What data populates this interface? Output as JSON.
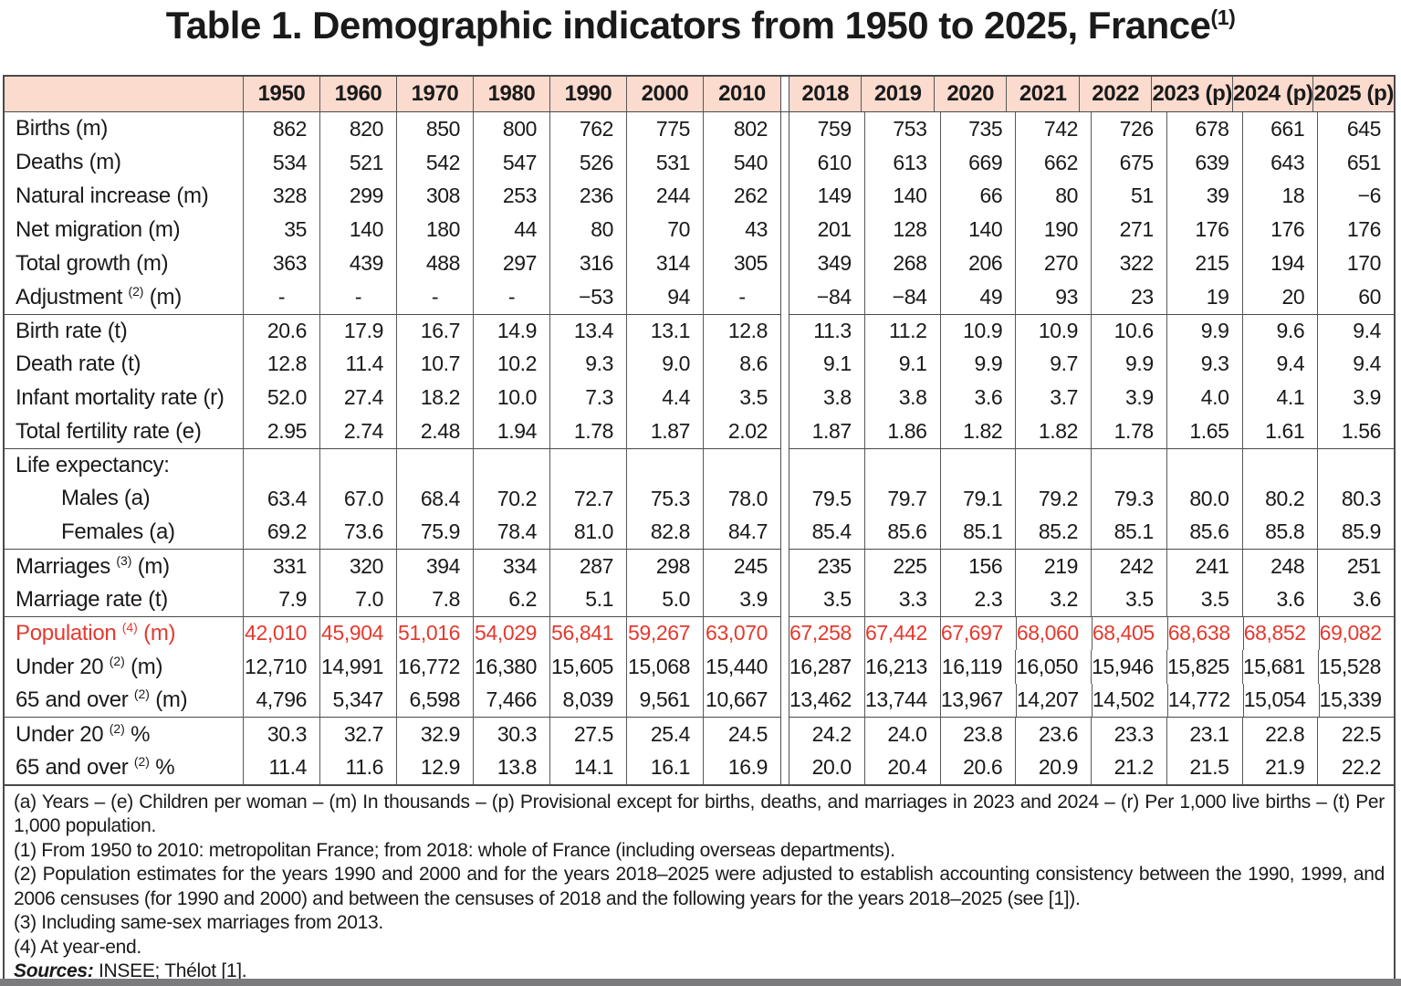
{
  "colors": {
    "accent_red": "#e5392e",
    "header_bg": "#fadbce",
    "border_dark": "#4a4a4c",
    "border_light": "#595959",
    "bottom_strip": "#7b7b7e"
  },
  "title": {
    "text": "Table 1. Demographic indicators from 1950 to 2025, France",
    "sup": "(1)"
  },
  "columns": {
    "left": [
      "1950",
      "1960",
      "1970",
      "1980",
      "1990",
      "2000",
      "2010"
    ],
    "right": [
      "2018",
      "2019",
      "2020",
      "2021",
      "2022",
      "2023 (p)",
      "2024 (p)",
      "2025 (p)"
    ]
  },
  "rows": [
    {
      "pre": "Births",
      "sup": "",
      "post": " (m)",
      "left": [
        "862",
        "820",
        "850",
        "800",
        "762",
        "775",
        "802"
      ],
      "right": [
        "759",
        "753",
        "735",
        "742",
        "726",
        "678",
        "661",
        "645"
      ]
    },
    {
      "pre": "Deaths",
      "sup": "",
      "post": " (m)",
      "left": [
        "534",
        "521",
        "542",
        "547",
        "526",
        "531",
        "540"
      ],
      "right": [
        "610",
        "613",
        "669",
        "662",
        "675",
        "639",
        "643",
        "651"
      ]
    },
    {
      "pre": "Natural increase",
      "sup": "",
      "post": " (m)",
      "left": [
        "328",
        "299",
        "308",
        "253",
        "236",
        "244",
        "262"
      ],
      "right": [
        "149",
        "140",
        "66",
        "80",
        "51",
        "39",
        "18",
        "−6"
      ]
    },
    {
      "pre": "Net migration",
      "sup": "",
      "post": " (m)",
      "left": [
        "35",
        "140",
        "180",
        "44",
        "80",
        "70",
        "43"
      ],
      "right": [
        "201",
        "128",
        "140",
        "190",
        "271",
        "176",
        "176",
        "176"
      ]
    },
    {
      "pre": "Total growth",
      "sup": "",
      "post": " (m)",
      "left": [
        "363",
        "439",
        "488",
        "297",
        "316",
        "314",
        "305"
      ],
      "right": [
        "349",
        "268",
        "206",
        "270",
        "322",
        "215",
        "194",
        "170"
      ]
    },
    {
      "pre": "Adjustment ",
      "sup": "(2)",
      "post": " (m)",
      "left": [
        "-",
        "-",
        "-",
        "-",
        "−53",
        "94",
        "-"
      ],
      "right": [
        "−84",
        "−84",
        "49",
        "93",
        "23",
        "19",
        "20",
        "60"
      ]
    },
    {
      "pre": "Birth rate",
      "sup": "",
      "post": " (t)",
      "group": true,
      "left": [
        "20.6",
        "17.9",
        "16.7",
        "14.9",
        "13.4",
        "13.1",
        "12.8"
      ],
      "right": [
        "11.3",
        "11.2",
        "10.9",
        "10.9",
        "10.6",
        "9.9",
        "9.6",
        "9.4"
      ]
    },
    {
      "pre": "Death rate",
      "sup": "",
      "post": " (t)",
      "left": [
        "12.8",
        "11.4",
        "10.7",
        "10.2",
        "9.3",
        "9.0",
        "8.6"
      ],
      "right": [
        "9.1",
        "9.1",
        "9.9",
        "9.7",
        "9.9",
        "9.3",
        "9.4",
        "9.4"
      ]
    },
    {
      "pre": "Infant mortality rate",
      "sup": "",
      "post": " (r)",
      "left": [
        "52.0",
        "27.4",
        "18.2",
        "10.0",
        "7.3",
        "4.4",
        "3.5"
      ],
      "right": [
        "3.8",
        "3.8",
        "3.6",
        "3.7",
        "3.9",
        "4.0",
        "4.1",
        "3.9"
      ]
    },
    {
      "pre": "Total fertility rate",
      "sup": "",
      "post": " (e)",
      "left": [
        "2.95",
        "2.74",
        "2.48",
        "1.94",
        "1.78",
        "1.87",
        "2.02"
      ],
      "right": [
        "1.87",
        "1.86",
        "1.82",
        "1.82",
        "1.78",
        "1.65",
        "1.61",
        "1.56"
      ]
    },
    {
      "pre": "Life expectancy:",
      "sup": "",
      "post": "",
      "group": true,
      "left": [
        "",
        "",
        "",
        "",
        "",
        "",
        ""
      ],
      "right": [
        "",
        "",
        "",
        "",
        "",
        "",
        "",
        ""
      ]
    },
    {
      "pre": "Males",
      "sup": "",
      "post": " (a)",
      "indent": true,
      "left": [
        "63.4",
        "67.0",
        "68.4",
        "70.2",
        "72.7",
        "75.3",
        "78.0"
      ],
      "right": [
        "79.5",
        "79.7",
        "79.1",
        "79.2",
        "79.3",
        "80.0",
        "80.2",
        "80.3"
      ]
    },
    {
      "pre": "Females",
      "sup": "",
      "post": " (a)",
      "indent": true,
      "left": [
        "69.2",
        "73.6",
        "75.9",
        "78.4",
        "81.0",
        "82.8",
        "84.7"
      ],
      "right": [
        "85.4",
        "85.6",
        "85.1",
        "85.2",
        "85.1",
        "85.6",
        "85.8",
        "85.9"
      ]
    },
    {
      "pre": "Marriages ",
      "sup": "(3)",
      "post": " (m)",
      "group": true,
      "left": [
        "331",
        "320",
        "394",
        "334",
        "287",
        "298",
        "245"
      ],
      "right": [
        "235",
        "225",
        "156",
        "219",
        "242",
        "241",
        "248",
        "251"
      ]
    },
    {
      "pre": "Marriage rate",
      "sup": "",
      "post": " (t)",
      "left": [
        "7.9",
        "7.0",
        "7.8",
        "6.2",
        "5.1",
        "5.0",
        "3.9"
      ],
      "right": [
        "3.5",
        "3.3",
        "2.3",
        "3.2",
        "3.5",
        "3.5",
        "3.6",
        "3.6"
      ]
    },
    {
      "pre": "Population ",
      "sup": "(4)",
      "post": " (m)",
      "group": true,
      "red": true,
      "left": [
        "42,010",
        "45,904",
        "51,016",
        "54,029",
        "56,841",
        "59,267",
        "63,070"
      ],
      "right": [
        "67,258",
        "67,442",
        "67,697",
        "68,060",
        "68,405",
        "68,638",
        "68,852",
        "69,082"
      ]
    },
    {
      "pre": "Under 20 ",
      "sup": "(2)",
      "post": " (m)",
      "left": [
        "12,710",
        "14,991",
        "16,772",
        "16,380",
        "15,605",
        "15,068",
        "15,440"
      ],
      "right": [
        "16,287",
        "16,213",
        "16,119",
        "16,050",
        "15,946",
        "15,825",
        "15,681",
        "15,528"
      ]
    },
    {
      "pre": "65 and over ",
      "sup": "(2)",
      "post": " (m)",
      "left": [
        "4,796",
        "5,347",
        "6,598",
        "7,466",
        "8,039",
        "9,561",
        "10,667"
      ],
      "right": [
        "13,462",
        "13,744",
        "13,967",
        "14,207",
        "14,502",
        "14,772",
        "15,054",
        "15,339"
      ]
    },
    {
      "pre": "Under 20 ",
      "sup": "(2)",
      "post": " %",
      "group": true,
      "left": [
        "30.3",
        "32.7",
        "32.9",
        "30.3",
        "27.5",
        "25.4",
        "24.5"
      ],
      "right": [
        "24.2",
        "24.0",
        "23.8",
        "23.6",
        "23.3",
        "23.1",
        "22.8",
        "22.5"
      ]
    },
    {
      "pre": "65 and over ",
      "sup": "(2)",
      "post": " %",
      "left": [
        "11.4",
        "11.6",
        "12.9",
        "13.8",
        "14.1",
        "16.1",
        "16.9"
      ],
      "right": [
        "20.0",
        "20.4",
        "20.6",
        "20.9",
        "21.2",
        "21.5",
        "21.9",
        "22.2"
      ]
    }
  ],
  "footnotes": {
    "lines": [
      {
        "text": "(a) Years – (e) Children per woman – (m) In thousands – (p) Provisional except for births, deaths, and marriages in 2023 and 2024 – (r) Per 1,000 live births – (t) Per 1,000 population.",
        "justify": true
      },
      {
        "text": "(1) From 1950 to 2010: metropolitan France; from 2018: whole of France (including overseas departments).",
        "justify": false
      },
      {
        "text": "(2) Population estimates for the years 1990 and 2000 and for the years 2018–2025 were adjusted to establish accounting consistency between the 1990, 1999, and 2006 censuses (for 1990 and 2000) and between the censuses of 2018 and the following years for the years 2018–2025 (see [1]).",
        "justify": true
      },
      {
        "text": "(3) Including same-sex marriages from 2013.",
        "justify": false
      },
      {
        "text": "(4) At year-end.",
        "justify": false
      }
    ],
    "sources_label": "Sources:",
    "sources_text": " INSEE; Thélot [1]."
  }
}
